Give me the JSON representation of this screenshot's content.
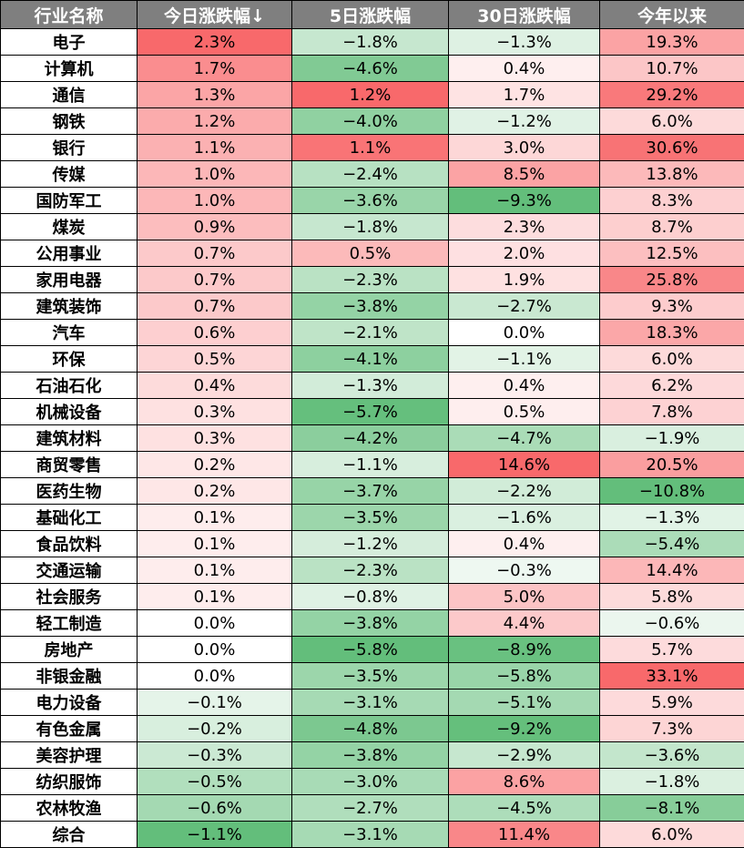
{
  "headers": [
    "行业名称",
    "今日涨跌幅↓",
    "5日涨跌幅",
    "30日涨跌幅",
    "今年以来"
  ],
  "rows": [
    [
      "电子",
      "2.3%",
      "−1.8%",
      "−1.3%",
      "19.3%"
    ],
    [
      "计算机",
      "1.7%",
      "−4.6%",
      "0.4%",
      "10.7%"
    ],
    [
      "通信",
      "1.3%",
      "1.2%",
      "1.7%",
      "29.2%"
    ],
    [
      "钢铁",
      "1.2%",
      "−4.0%",
      "−1.2%",
      "6.0%"
    ],
    [
      "银行",
      "1.1%",
      "1.1%",
      "3.0%",
      "30.6%"
    ],
    [
      "传媒",
      "1.0%",
      "−2.4%",
      "8.5%",
      "13.8%"
    ],
    [
      "国防军工",
      "1.0%",
      "−3.6%",
      "−9.3%",
      "8.3%"
    ],
    [
      "煤炭",
      "0.9%",
      "−1.8%",
      "2.3%",
      "8.7%"
    ],
    [
      "公用事业",
      "0.7%",
      "0.5%",
      "2.0%",
      "12.5%"
    ],
    [
      "家用电器",
      "0.7%",
      "−2.3%",
      "1.9%",
      "25.8%"
    ],
    [
      "建筑装饰",
      "0.7%",
      "−3.8%",
      "−2.7%",
      "9.3%"
    ],
    [
      "汽车",
      "0.6%",
      "−2.1%",
      "0.0%",
      "18.3%"
    ],
    [
      "环保",
      "0.5%",
      "−4.1%",
      "−1.1%",
      "6.0%"
    ],
    [
      "石油石化",
      "0.4%",
      "−1.3%",
      "0.4%",
      "6.2%"
    ],
    [
      "机械设备",
      "0.3%",
      "−5.7%",
      "0.5%",
      "7.8%"
    ],
    [
      "建筑材料",
      "0.3%",
      "−4.2%",
      "−4.7%",
      "−1.9%"
    ],
    [
      "商贸零售",
      "0.2%",
      "−1.1%",
      "14.6%",
      "20.5%"
    ],
    [
      "医药生物",
      "0.2%",
      "−3.7%",
      "−2.2%",
      "−10.8%"
    ],
    [
      "基础化工",
      "0.1%",
      "−3.5%",
      "−1.6%",
      "−1.3%"
    ],
    [
      "食品饮料",
      "0.1%",
      "−1.2%",
      "0.4%",
      "−5.4%"
    ],
    [
      "交通运输",
      "0.1%",
      "−2.3%",
      "−0.3%",
      "14.4%"
    ],
    [
      "社会服务",
      "0.1%",
      "−0.8%",
      "5.0%",
      "5.8%"
    ],
    [
      "轻工制造",
      "0.0%",
      "−3.8%",
      "4.4%",
      "−0.6%"
    ],
    [
      "房地产",
      "0.0%",
      "−5.8%",
      "−8.9%",
      "5.7%"
    ],
    [
      "非银金融",
      "0.0%",
      "−3.5%",
      "−5.8%",
      "33.1%"
    ],
    [
      "电力设备",
      "−0.1%",
      "−3.1%",
      "−5.1%",
      "5.9%"
    ],
    [
      "有色金属",
      "−0.2%",
      "−4.8%",
      "−9.2%",
      "7.3%"
    ],
    [
      "美容护理",
      "−0.3%",
      "−3.8%",
      "−2.9%",
      "−3.6%"
    ],
    [
      "纺织服饰",
      "−0.5%",
      "−3.0%",
      "8.6%",
      "−1.8%"
    ],
    [
      "农林牧渔",
      "−0.6%",
      "−2.7%",
      "−4.5%",
      "−8.1%"
    ],
    [
      "综合",
      "−1.1%",
      "−3.1%",
      "11.4%",
      "6.0%"
    ]
  ],
  "colors": {
    "header_bg": "#7f7f7f",
    "header_text": "#ffffff",
    "positive_max": "#f8696b",
    "negative_max": "#63be7b",
    "neutral": "#ffffff"
  }
}
